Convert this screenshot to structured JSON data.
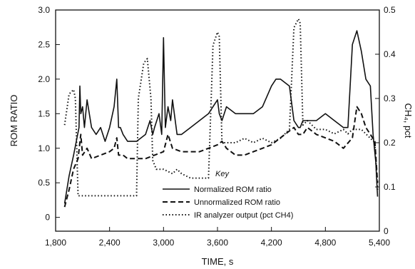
{
  "chart_data": {
    "type": "line",
    "xlabel": "TIME, s",
    "ylabel_left": "ROM RATIO",
    "ylabel_right": "CH₄, pct",
    "xlim": [
      1800,
      5400
    ],
    "ylim_left": [
      -0.2,
      3.0
    ],
    "ylim_right": [
      0,
      0.5
    ],
    "x_ticks": [
      "1,800",
      "2,400",
      "3,000",
      "3,600",
      "4,200",
      "4,800",
      "5,400"
    ],
    "y_ticks_left": [
      "0",
      "0.5",
      "1.0",
      "1.5",
      "2.0",
      "2.5",
      "3.0"
    ],
    "y_ticks_right": [
      "0",
      "0.1",
      "0.2",
      "0.3",
      "0.4",
      "0.5"
    ],
    "key_title": "Key",
    "grid": false,
    "series": [
      {
        "name": "Normalized ROM ratio",
        "style": "solid",
        "axis": "left",
        "x": [
          1900,
          1950,
          2000,
          2030,
          2060,
          2070,
          2080,
          2100,
          2120,
          2150,
          2200,
          2250,
          2300,
          2350,
          2400,
          2450,
          2480,
          2500,
          2520,
          2550,
          2600,
          2700,
          2800,
          2850,
          2880,
          2900,
          2950,
          2980,
          3000,
          3020,
          3050,
          3080,
          3100,
          3150,
          3200,
          3300,
          3400,
          3500,
          3550,
          3600,
          3620,
          3650,
          3700,
          3800,
          3900,
          4000,
          4100,
          4200,
          4250,
          4300,
          4400,
          4450,
          4500,
          4520,
          4550,
          4600,
          4700,
          4800,
          4900,
          5000,
          5050,
          5100,
          5150,
          5200,
          5250,
          5300,
          5330,
          5360,
          5380
        ],
        "y": [
          0.2,
          0.6,
          0.9,
          1.1,
          1.3,
          1.9,
          1.5,
          1.6,
          1.3,
          1.7,
          1.3,
          1.2,
          1.3,
          1.1,
          1.3,
          1.6,
          2.0,
          1.3,
          1.3,
          1.2,
          1.1,
          1.1,
          1.2,
          1.4,
          1.2,
          1.3,
          1.5,
          1.2,
          2.6,
          1.3,
          1.6,
          1.4,
          1.7,
          1.2,
          1.2,
          1.3,
          1.4,
          1.5,
          1.6,
          1.7,
          1.5,
          1.4,
          1.6,
          1.5,
          1.5,
          1.5,
          1.6,
          1.9,
          2.0,
          2.0,
          1.9,
          1.4,
          1.3,
          1.3,
          1.4,
          1.4,
          1.4,
          1.5,
          1.4,
          1.3,
          1.3,
          2.5,
          2.7,
          2.4,
          2.0,
          1.9,
          1.2,
          0.8,
          0.3
        ]
      },
      {
        "name": "Unnormalized ROM ratio",
        "style": "dashed",
        "axis": "left",
        "x": [
          1900,
          1950,
          2000,
          2050,
          2080,
          2100,
          2150,
          2200,
          2300,
          2400,
          2450,
          2480,
          2500,
          2550,
          2600,
          2700,
          2800,
          2900,
          3000,
          3050,
          3100,
          3200,
          3400,
          3500,
          3600,
          3650,
          3700,
          3800,
          3900,
          4000,
          4100,
          4200,
          4300,
          4400,
          4450,
          4500,
          4550,
          4600,
          4700,
          4800,
          4900,
          5000,
          5100,
          5150,
          5200,
          5250,
          5300,
          5350,
          5380
        ],
        "y": [
          0.15,
          0.4,
          0.7,
          0.85,
          1.2,
          0.9,
          1.0,
          0.85,
          0.9,
          0.95,
          1.0,
          1.15,
          0.9,
          0.9,
          0.85,
          0.85,
          0.85,
          0.9,
          0.95,
          1.2,
          1.0,
          0.95,
          0.95,
          1.0,
          1.05,
          1.1,
          1.0,
          0.9,
          0.9,
          0.95,
          1.0,
          1.05,
          1.15,
          1.25,
          1.3,
          1.2,
          1.2,
          1.3,
          1.2,
          1.15,
          1.1,
          1.0,
          1.15,
          1.6,
          1.5,
          1.3,
          1.2,
          1.1,
          0.5
        ]
      },
      {
        "name": "IR analyzer output (pct CH4)",
        "style": "dotted",
        "axis": "right",
        "x": [
          1900,
          1950,
          2000,
          2020,
          2050,
          2100,
          2300,
          2500,
          2600,
          2700,
          2720,
          2780,
          2820,
          2860,
          2880,
          2920,
          3000,
          3100,
          3150,
          3200,
          3300,
          3400,
          3500,
          3550,
          3600,
          3620,
          3650,
          3700,
          3800,
          3900,
          4000,
          4100,
          4200,
          4300,
          4400,
          4450,
          4500,
          4520,
          4550,
          4600,
          4700,
          4800,
          4900,
          5000,
          5050,
          5100,
          5200,
          5250,
          5300,
          5350,
          5380
        ],
        "y": [
          0.24,
          0.31,
          0.32,
          0.3,
          0.08,
          0.08,
          0.08,
          0.08,
          0.08,
          0.08,
          0.3,
          0.38,
          0.39,
          0.3,
          0.16,
          0.14,
          0.14,
          0.13,
          0.14,
          0.13,
          0.12,
          0.12,
          0.12,
          0.42,
          0.45,
          0.44,
          0.2,
          0.2,
          0.2,
          0.21,
          0.2,
          0.21,
          0.2,
          0.21,
          0.23,
          0.46,
          0.48,
          0.47,
          0.24,
          0.25,
          0.23,
          0.23,
          0.22,
          0.23,
          0.22,
          0.23,
          0.23,
          0.22,
          0.21,
          0.2,
          0.09
        ]
      }
    ]
  }
}
